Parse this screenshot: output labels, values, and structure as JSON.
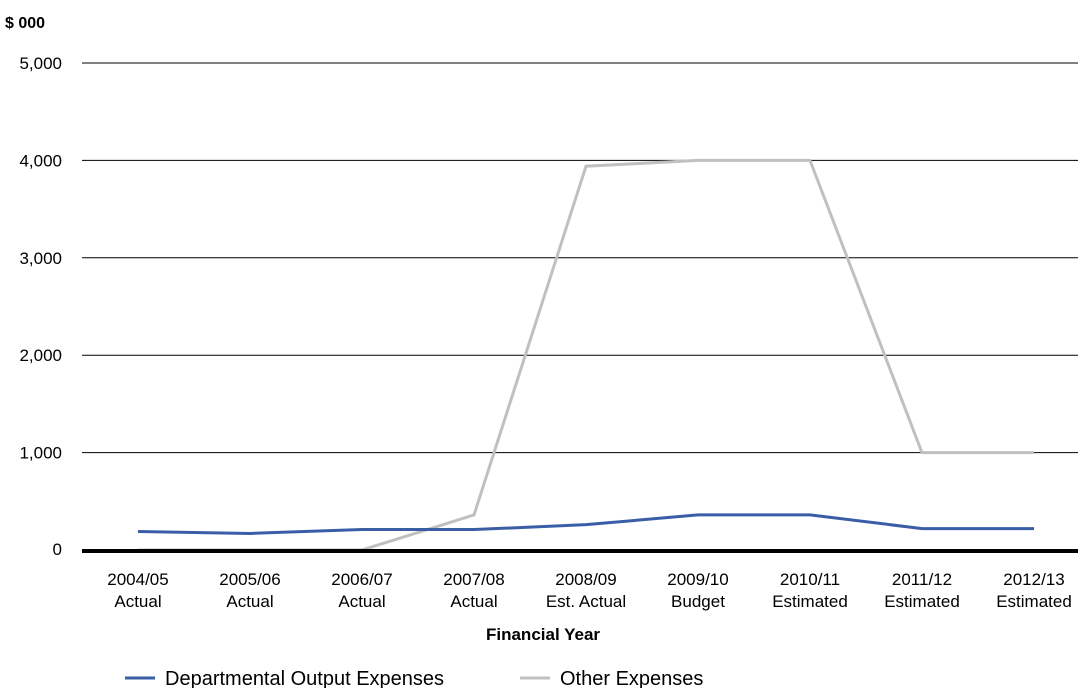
{
  "chart_data": {
    "type": "line",
    "y_unit_label": "$ 000",
    "xlabel": "Financial Year",
    "ylim": [
      0,
      5000
    ],
    "y_ticks": [
      0,
      1000,
      2000,
      3000,
      4000,
      5000
    ],
    "y_tick_labels": [
      "0",
      "1,000",
      "2,000",
      "3,000",
      "4,000",
      "5,000"
    ],
    "grid": true,
    "legend_position": "bottom",
    "categories": [
      [
        "2004/05",
        "Actual"
      ],
      [
        "2005/06",
        "Actual"
      ],
      [
        "2006/07",
        "Actual"
      ],
      [
        "2007/08",
        "Actual"
      ],
      [
        "2008/09",
        "Est. Actual"
      ],
      [
        "2009/10",
        "Budget"
      ],
      [
        "2010/11",
        "Estimated"
      ],
      [
        "2011/12",
        "Estimated"
      ],
      [
        "2012/13",
        "Estimated"
      ]
    ],
    "series": [
      {
        "name": "Departmental Output Expenses",
        "color": "#3a5ea6",
        "values": [
          190,
          170,
          210,
          210,
          260,
          360,
          360,
          220,
          220
        ]
      },
      {
        "name": "Other Expenses",
        "color": "#c0c0c0",
        "values": [
          0,
          0,
          0,
          360,
          3940,
          4000,
          4000,
          1000,
          1000
        ]
      }
    ]
  }
}
